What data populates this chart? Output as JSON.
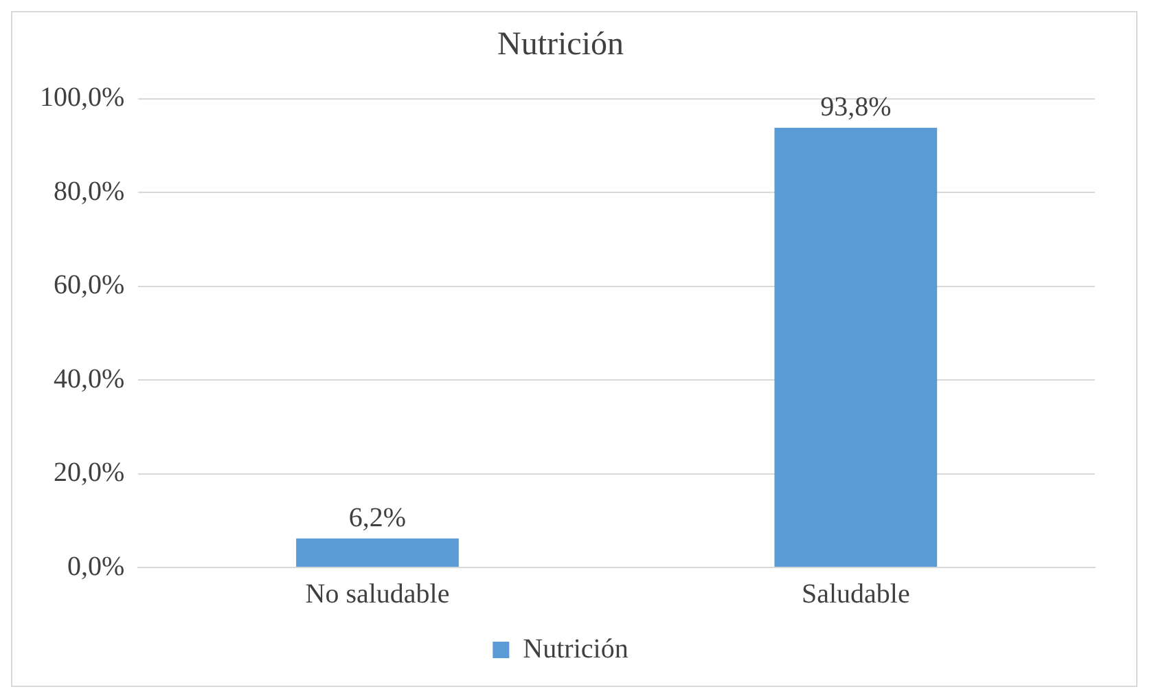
{
  "chart_data": {
    "type": "bar",
    "title": "Nutrición",
    "categories": [
      "No saludable",
      "Saludable"
    ],
    "series": [
      {
        "name": "Nutrición",
        "color": "#5b9bd5",
        "values": [
          6.2,
          93.8
        ],
        "value_labels": [
          "6,2%",
          "93,8%"
        ]
      }
    ],
    "ylim": [
      0,
      100
    ],
    "yticks": [
      {
        "value": 0,
        "label": "0,0%"
      },
      {
        "value": 20,
        "label": "20,0%"
      },
      {
        "value": 40,
        "label": "40,0%"
      },
      {
        "value": 60,
        "label": "60,0%"
      },
      {
        "value": 80,
        "label": "80,0%"
      },
      {
        "value": 100,
        "label": "100,0%"
      }
    ],
    "grid": "y",
    "legend": "bottom"
  }
}
